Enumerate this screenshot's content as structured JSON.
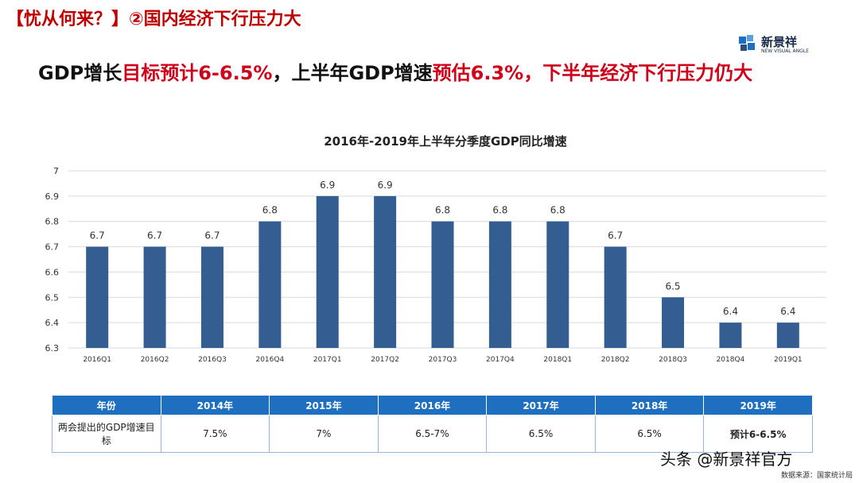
{
  "header": {
    "title": "【忧从何来？】②国内经济下行压力大",
    "logo": {
      "name": "新景祥",
      "tagline": "NEW VISUAL ANGLE"
    }
  },
  "subtitle": [
    {
      "text": "GDP增长",
      "color": "#111111"
    },
    {
      "text": "目标预计6-6.5%",
      "color": "#d0021b"
    },
    {
      "text": "，上半年GDP增速",
      "color": "#111111"
    },
    {
      "text": "预估6.3%",
      "color": "#d0021b"
    },
    {
      "text": "，下半年经济下行压力仍大",
      "color": "#d0021b"
    }
  ],
  "chart_data": {
    "type": "bar",
    "title": "2016年-2019年上半年分季度GDP同比增速",
    "categories": [
      "2016Q1",
      "2016Q2",
      "2016Q3",
      "2016Q4",
      "2017Q1",
      "2017Q2",
      "2017Q3",
      "2017Q4",
      "2018Q1",
      "2018Q2",
      "2018Q3",
      "2018Q4",
      "2019Q1"
    ],
    "values": [
      6.7,
      6.7,
      6.7,
      6.8,
      6.9,
      6.9,
      6.8,
      6.8,
      6.8,
      6.7,
      6.5,
      6.4,
      6.4
    ],
    "color": "#345d91",
    "ylim": [
      6.3,
      7
    ],
    "yticks": [
      6.3,
      6.4,
      6.5,
      6.6,
      6.7,
      6.8,
      6.9,
      7
    ],
    "grid": true
  },
  "table": {
    "header": [
      "年份",
      "2014年",
      "2015年",
      "2016年",
      "2017年",
      "2018年",
      "2019年"
    ],
    "rows": [
      [
        "两会提出的GDP增速目标",
        "7.5%",
        "7%",
        "6.5-7%",
        "6.5%",
        "6.5%",
        "预计6-6.5%"
      ]
    ]
  },
  "watermark": "头条 @新景祥官方",
  "source": "数据来源：国家统计局"
}
